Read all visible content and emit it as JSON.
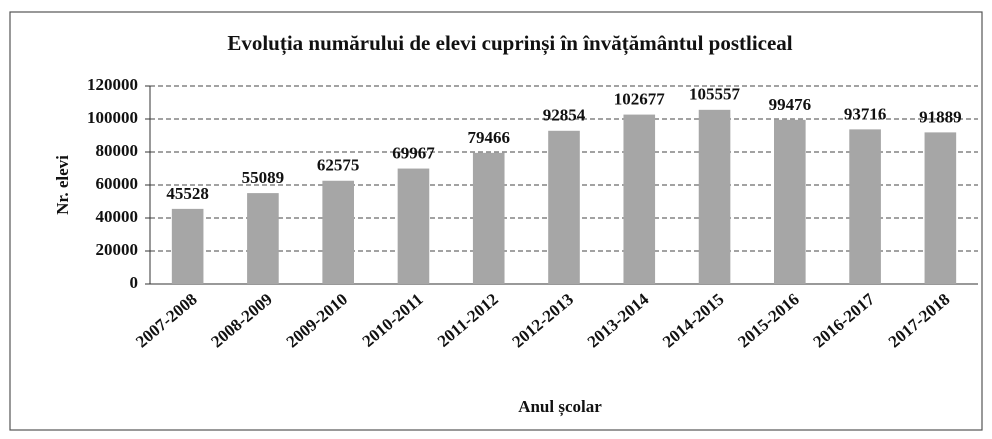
{
  "chart_data": {
    "type": "bar",
    "title": "Evoluția numărului de elevi cuprinși în învățământul postliceal",
    "x_label": "Anul școlar",
    "y_label": "Nr. elevi",
    "categories": [
      "2007-2008",
      "2008-2009",
      "2009-2010",
      "2010-2011",
      "2011-2012",
      "2012-2013",
      "2013-2014",
      "2014-2015",
      "2015-2016",
      "2016-2017",
      "2017-2018"
    ],
    "values": [
      45528,
      55089,
      62575,
      69967,
      79466,
      92854,
      102677,
      105557,
      99476,
      93716,
      91889
    ],
    "color": "#a6a6a6",
    "ylim": [
      0,
      120000
    ],
    "yticks": [
      0,
      20000,
      40000,
      60000,
      80000,
      100000,
      120000
    ],
    "grid": true
  }
}
